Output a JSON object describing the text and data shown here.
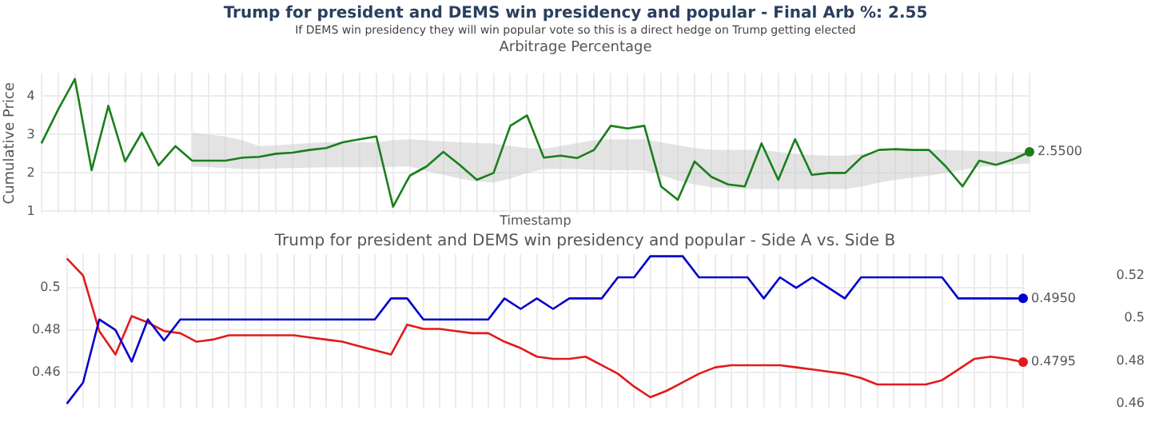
{
  "chart_data": [
    {
      "type": "line",
      "title": "Trump for president and DEMS win presidency and popular - Final Arb %: 2.55",
      "subtitle": "If DEMS win presidency they will win popular vote so this is a direct hedge on Trump getting elected",
      "annotations": [
        "Arbitrage Percentage"
      ],
      "xlabel": "Timestamp",
      "ylabel": "Cumulative Price",
      "categories": [
        null,
        null,
        null,
        null,
        null,
        null,
        null,
        null,
        null,
        null,
        null,
        null,
        null,
        null,
        null,
        null,
        null,
        null,
        null,
        null,
        null,
        null,
        null,
        null,
        null,
        null,
        null,
        null,
        null,
        null,
        null,
        null,
        null,
        null,
        null,
        null,
        null,
        null,
        null,
        null,
        null,
        null,
        null,
        null,
        null,
        null,
        null,
        null,
        null,
        null,
        null,
        null,
        null,
        null,
        null,
        null,
        null,
        null,
        null,
        null
      ],
      "series": [
        {
          "color": "#1a7f1a",
          "values": [
            2.77,
            3.65,
            4.45,
            2.07,
            3.75,
            2.3,
            3.05,
            2.2,
            2.7,
            2.32,
            2.32,
            2.32,
            2.4,
            2.42,
            2.5,
            2.53,
            2.6,
            2.65,
            2.8,
            2.88,
            2.95,
            1.12,
            1.93,
            2.17,
            2.55,
            2.2,
            1.82,
            2.0,
            3.23,
            3.5,
            2.4,
            2.45,
            2.39,
            2.6,
            3.23,
            3.16,
            3.23,
            1.65,
            1.3,
            2.3,
            1.9,
            1.7,
            1.65,
            2.77,
            1.82,
            2.88,
            1.95,
            2.0,
            2.0,
            2.42,
            2.6,
            2.62,
            2.6,
            2.6,
            2.17,
            1.65,
            2.32,
            2.21,
            2.35,
            2.55
          ],
          "upper": [
            null,
            null,
            null,
            null,
            null,
            null,
            null,
            null,
            null,
            3.05,
            3.0,
            2.95,
            2.85,
            2.7,
            2.72,
            2.75,
            2.78,
            2.8,
            2.8,
            2.8,
            2.8,
            2.85,
            2.88,
            2.85,
            2.82,
            2.8,
            2.78,
            2.77,
            2.7,
            2.65,
            2.63,
            2.7,
            2.78,
            2.85,
            2.88,
            2.88,
            2.88,
            2.8,
            2.72,
            2.65,
            2.6,
            2.6,
            2.6,
            2.6,
            2.55,
            2.5,
            2.47,
            2.45,
            2.45,
            2.5,
            2.55,
            2.58,
            2.6,
            2.6,
            2.6,
            2.58,
            2.57,
            2.56,
            2.55,
            2.55
          ],
          "lower": [
            null,
            null,
            null,
            null,
            null,
            null,
            null,
            null,
            null,
            2.17,
            2.15,
            2.13,
            2.1,
            2.1,
            2.12,
            2.13,
            2.14,
            2.15,
            2.15,
            2.15,
            2.15,
            2.16,
            2.17,
            2.05,
            1.95,
            1.85,
            1.78,
            1.75,
            1.85,
            2.0,
            2.1,
            2.1,
            2.1,
            2.08,
            2.07,
            2.07,
            2.07,
            1.95,
            1.8,
            1.7,
            1.63,
            1.6,
            1.58,
            1.58,
            1.58,
            1.58,
            1.58,
            1.58,
            1.58,
            1.65,
            1.75,
            1.82,
            1.88,
            1.93,
            2.0,
            2.08,
            2.15,
            2.2,
            2.22,
            2.25
          ],
          "value_labels": [
            null,
            null,
            null,
            null,
            null,
            null,
            null,
            null,
            null,
            null,
            null,
            null,
            null,
            null,
            null,
            null,
            null,
            null,
            null,
            null,
            null,
            null,
            null,
            null,
            null,
            null,
            null,
            null,
            null,
            null,
            null,
            null,
            null,
            null,
            null,
            null,
            null,
            null,
            null,
            null,
            null,
            null,
            null,
            null,
            null,
            null,
            null,
            null,
            null,
            null,
            null,
            null,
            null,
            null,
            null,
            null,
            null,
            null,
            null,
            "2.5500"
          ]
        }
      ],
      "ylim": [
        0.95,
        4.6
      ],
      "yticks": [
        1,
        2,
        3,
        4
      ],
      "grid": true,
      "legend": false,
      "tick_labels": "y"
    },
    {
      "type": "line",
      "title": "Trump for president and DEMS win presidency and popular - Side A vs. Side B",
      "categories": [
        null,
        null,
        null,
        null,
        null,
        null,
        null,
        null,
        null,
        null,
        null,
        null,
        null,
        null,
        null,
        null,
        null,
        null,
        null,
        null,
        null,
        null,
        null,
        null,
        null,
        null,
        null,
        null,
        null,
        null,
        null,
        null,
        null,
        null,
        null,
        null,
        null,
        null,
        null,
        null,
        null,
        null,
        null,
        null,
        null,
        null,
        null,
        null,
        null,
        null,
        null,
        null,
        null,
        null,
        null,
        null,
        null,
        null,
        null,
        null
      ],
      "series": [
        {
          "color": "#0000cc",
          "values": [
            0.445,
            0.455,
            0.485,
            0.48,
            0.465,
            0.485,
            0.475,
            0.485,
            0.485,
            0.485,
            0.485,
            0.485,
            0.485,
            0.485,
            0.485,
            0.485,
            0.485,
            0.485,
            0.485,
            0.485,
            0.495,
            0.495,
            0.485,
            0.485,
            0.485,
            0.485,
            0.485,
            0.495,
            0.49,
            0.495,
            0.49,
            0.495,
            0.495,
            0.495,
            0.505,
            0.505,
            0.515,
            0.515,
            0.515,
            0.505,
            0.505,
            0.505,
            0.505,
            0.495,
            0.505,
            0.5,
            0.505,
            0.5,
            0.495,
            0.505,
            0.505,
            0.505,
            0.505,
            0.505,
            0.505,
            0.495,
            0.495,
            0.495,
            0.495,
            0.495
          ],
          "value_labels": [
            null,
            null,
            null,
            null,
            null,
            null,
            null,
            null,
            null,
            null,
            null,
            null,
            null,
            null,
            null,
            null,
            null,
            null,
            null,
            null,
            null,
            null,
            null,
            null,
            null,
            null,
            null,
            null,
            null,
            null,
            null,
            null,
            null,
            null,
            null,
            null,
            null,
            null,
            null,
            null,
            null,
            null,
            null,
            null,
            null,
            null,
            null,
            null,
            null,
            null,
            null,
            null,
            null,
            null,
            null,
            null,
            null,
            null,
            null,
            "0.4950"
          ]
        },
        {
          "color": "#e31a1a",
          "axis": "y2",
          "values": [
            0.528,
            0.52,
            0.494,
            0.483,
            0.501,
            0.498,
            0.494,
            0.493,
            0.489,
            0.49,
            0.492,
            0.492,
            0.492,
            0.492,
            0.492,
            0.491,
            0.49,
            0.489,
            0.487,
            0.485,
            0.483,
            0.497,
            0.495,
            0.495,
            0.494,
            0.493,
            0.493,
            0.489,
            0.486,
            0.482,
            0.481,
            0.481,
            0.482,
            0.478,
            0.474,
            0.468,
            0.463,
            0.466,
            0.47,
            0.474,
            0.477,
            0.478,
            0.478,
            0.478,
            0.478,
            0.477,
            0.476,
            0.475,
            0.474,
            0.472,
            0.469,
            0.469,
            0.469,
            0.469,
            0.471,
            0.476,
            0.481,
            0.482,
            0.481,
            0.4795
          ],
          "value_labels": [
            null,
            null,
            null,
            null,
            null,
            null,
            null,
            null,
            null,
            null,
            null,
            null,
            null,
            null,
            null,
            null,
            null,
            null,
            null,
            null,
            null,
            null,
            null,
            null,
            null,
            null,
            null,
            null,
            null,
            null,
            null,
            null,
            null,
            null,
            null,
            null,
            null,
            null,
            null,
            null,
            null,
            null,
            null,
            null,
            null,
            null,
            null,
            null,
            null,
            null,
            null,
            null,
            null,
            null,
            null,
            null,
            null,
            null,
            null,
            "0.4795"
          ]
        }
      ],
      "ylim": [
        0.443,
        0.516
      ],
      "yticks": [
        0.46,
        0.48,
        0.5
      ],
      "y2lim": [
        0.458,
        0.53
      ],
      "y2ticks": [
        0.46,
        0.48,
        0.5,
        0.52
      ],
      "grid": true,
      "legend": false,
      "tick_labels": "y"
    }
  ]
}
